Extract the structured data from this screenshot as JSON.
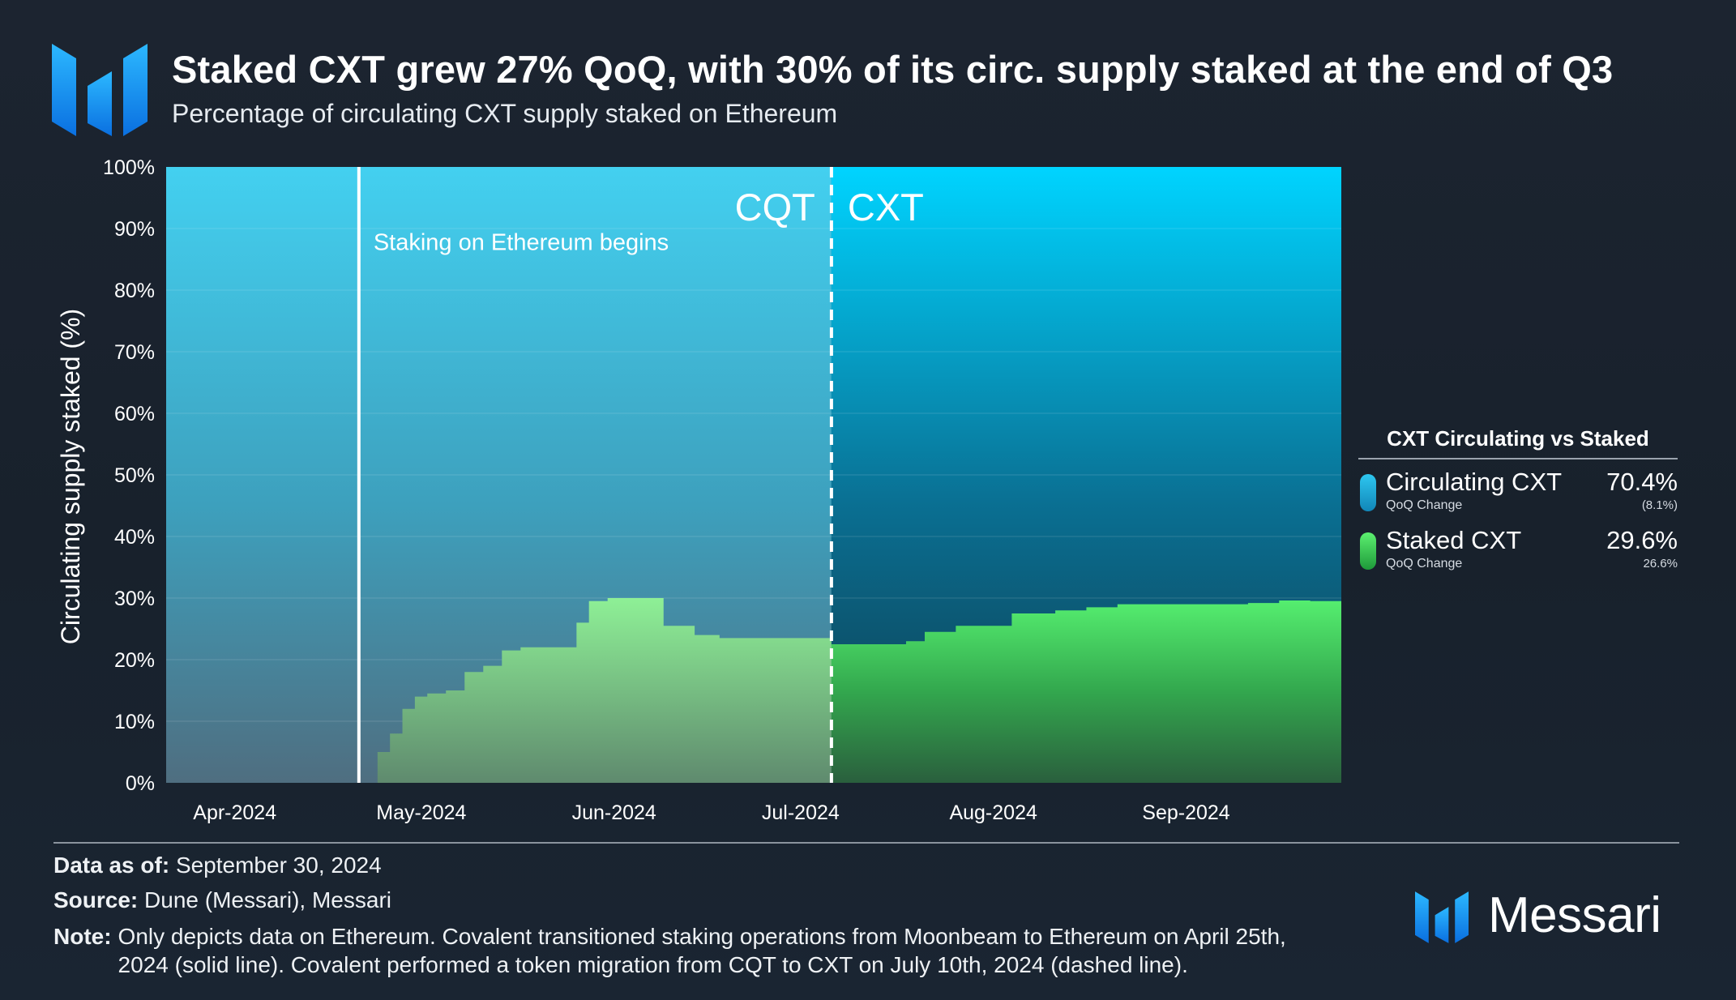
{
  "header": {
    "title": "Staked CXT grew 27% QoQ, with 30% of its circ. supply staked at the end of Q3",
    "subtitle": "Percentage of circulating CXT supply staked on Ethereum"
  },
  "colors": {
    "accent_blue": "#1ea7f0",
    "circulating_blue": "#2ec7f0",
    "staked_green": "#4fe66a",
    "background": "#1b2430"
  },
  "chart_data": {
    "type": "area",
    "stacked": true,
    "title": "Percentage of circulating CXT supply staked on Ethereum",
    "ylabel": "Circulating supply staked (%)",
    "xlabel": "",
    "ylim": [
      0,
      100
    ],
    "xlim": [
      "2024-03-25",
      "2024-09-30"
    ],
    "yticks": [
      "0%",
      "10%",
      "20%",
      "30%",
      "40%",
      "50%",
      "60%",
      "70%",
      "80%",
      "90%",
      "100%"
    ],
    "xticks": [
      {
        "label": "Apr-2024",
        "date": "2024-04-01"
      },
      {
        "label": "May-2024",
        "date": "2024-05-01"
      },
      {
        "label": "Jun-2024",
        "date": "2024-06-01"
      },
      {
        "label": "Jul-2024",
        "date": "2024-07-01"
      },
      {
        "label": "Aug-2024",
        "date": "2024-08-01"
      },
      {
        "label": "Sep-2024",
        "date": "2024-09-01"
      }
    ],
    "annotations": {
      "staking_begins": {
        "date": "2024-04-25",
        "label": "Staking on Ethereum begins",
        "style": "solid"
      },
      "migration": {
        "date": "2024-07-10",
        "label_left": "CQT",
        "label_right": "CXT",
        "style": "dashed"
      }
    },
    "series": [
      {
        "name": "Staked CXT",
        "x": [
          "2024-04-25",
          "2024-04-28",
          "2024-04-30",
          "2024-05-02",
          "2024-05-04",
          "2024-05-06",
          "2024-05-09",
          "2024-05-12",
          "2024-05-15",
          "2024-05-18",
          "2024-05-21",
          "2024-05-25",
          "2024-05-30",
          "2024-06-01",
          "2024-06-04",
          "2024-06-08",
          "2024-06-13",
          "2024-06-18",
          "2024-06-22",
          "2024-06-25",
          "2024-06-30",
          "2024-07-05",
          "2024-07-10",
          "2024-07-15",
          "2024-07-19",
          "2024-07-22",
          "2024-07-25",
          "2024-07-30",
          "2024-08-04",
          "2024-08-06",
          "2024-08-08",
          "2024-08-15",
          "2024-08-20",
          "2024-08-25",
          "2024-08-30",
          "2024-09-05",
          "2024-09-10",
          "2024-09-15",
          "2024-09-20",
          "2024-09-25",
          "2024-09-30"
        ],
        "values": [
          0,
          5,
          8,
          12,
          14,
          14.5,
          15,
          18,
          19,
          21.5,
          22,
          22,
          26,
          29.5,
          30,
          30,
          25.5,
          24,
          23.5,
          23.5,
          23.5,
          23.5,
          22.5,
          22.5,
          22.5,
          23,
          24.5,
          25.5,
          25.5,
          25.5,
          27.5,
          28,
          28.5,
          29,
          29,
          29,
          29,
          29.2,
          29.6,
          29.5,
          29.6
        ]
      },
      {
        "name": "Circulating CXT",
        "fills_to": 100
      }
    ]
  },
  "legend": {
    "title": "CXT Circulating vs Staked",
    "items": [
      {
        "name": "Circulating CXT",
        "value": "70.4%",
        "sublabel": "QoQ Change",
        "change": "(8.1%)"
      },
      {
        "name": "Staked CXT",
        "value": "29.6%",
        "sublabel": "QoQ Change",
        "change": "26.6%"
      }
    ]
  },
  "footer": {
    "data_as_of_label": "Data as of:",
    "data_as_of_value": "September 30, 2024",
    "source_label": "Source:",
    "source_value": "Dune (Messari), Messari",
    "note_label": "Note:",
    "note_value": "Only depicts data on Ethereum. Covalent transitioned staking operations from Moonbeam to Ethereum on April 25th, 2024 (solid line). Covalent performed a token migration from CQT to CXT on July 10th, 2024 (dashed line).",
    "brand": "Messari"
  }
}
